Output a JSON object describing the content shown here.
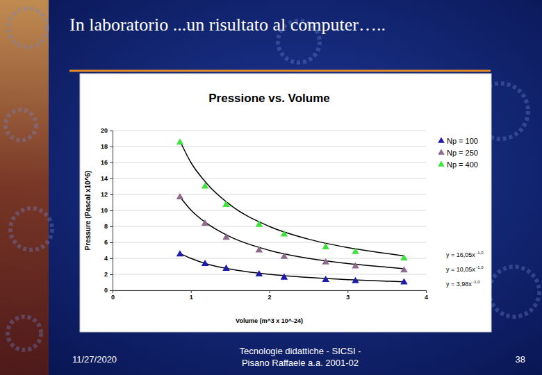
{
  "slide": {
    "title": "In laboratorio ...un risultato al computer…..",
    "date": "11/27/2020",
    "footer": [
      "Tecnologie didattiche - SICSI -",
      "Pisano Raffaele  a.a. 2001-02"
    ],
    "page": 38
  },
  "chart_data": {
    "type": "scatter",
    "title": "Pressione vs. Volume",
    "x_label": "Volume (m^3 x 10^-24)",
    "y_label": "Pressure (Pascal x10^6)",
    "xlim": [
      0,
      4
    ],
    "xticks": [
      0,
      1,
      2,
      3,
      4
    ],
    "ylim": [
      0,
      20
    ],
    "yticks": [
      0,
      2,
      4,
      6,
      8,
      10,
      12,
      14,
      16,
      18,
      20
    ],
    "grid": true,
    "legend": "right",
    "marker": "triangle",
    "x": [
      0.86,
      1.18,
      1.45,
      1.87,
      2.19,
      2.72,
      3.1,
      3.72
    ],
    "series": [
      {
        "name": "Np = 100",
        "color": "#1c1ca8",
        "values": [
          4.5,
          3.3,
          2.7,
          2.0,
          1.6,
          1.3,
          1.15,
          1.0
        ],
        "trendline": {
          "label": "y = 3,98x",
          "exponent": "-1,0",
          "x": [
            0.86,
            1.0,
            1.2,
            1.5,
            2.0,
            2.5,
            3.0,
            3.5,
            3.72
          ],
          "values": [
            4.6,
            4.0,
            3.3,
            2.65,
            2.0,
            1.6,
            1.33,
            1.14,
            1.07
          ]
        }
      },
      {
        "name": "Np = 250",
        "color": "#8e6a8e",
        "values": [
          11.65,
          8.35,
          6.6,
          5.0,
          4.2,
          3.5,
          3.0,
          2.5
        ],
        "trendline": {
          "label": "y = 10,05x",
          "exponent": "-1,0",
          "x": [
            0.86,
            1.0,
            1.2,
            1.5,
            2.0,
            2.5,
            3.0,
            3.5,
            3.72
          ],
          "values": [
            11.7,
            10.05,
            8.4,
            6.7,
            5.0,
            4.0,
            3.35,
            2.9,
            2.7
          ]
        }
      },
      {
        "name": "Np = 400",
        "color": "#3ee23e",
        "values": [
          18.5,
          13.0,
          10.7,
          8.2,
          7.0,
          5.4,
          4.8,
          4.0
        ],
        "trendline": {
          "label": "y = 16,05x",
          "exponent": "-1,0",
          "x": [
            0.86,
            1.0,
            1.2,
            1.5,
            2.0,
            2.5,
            3.0,
            3.5,
            3.72
          ],
          "values": [
            18.7,
            16.0,
            13.4,
            10.7,
            8.0,
            6.4,
            5.35,
            4.6,
            4.3
          ]
        }
      }
    ]
  }
}
